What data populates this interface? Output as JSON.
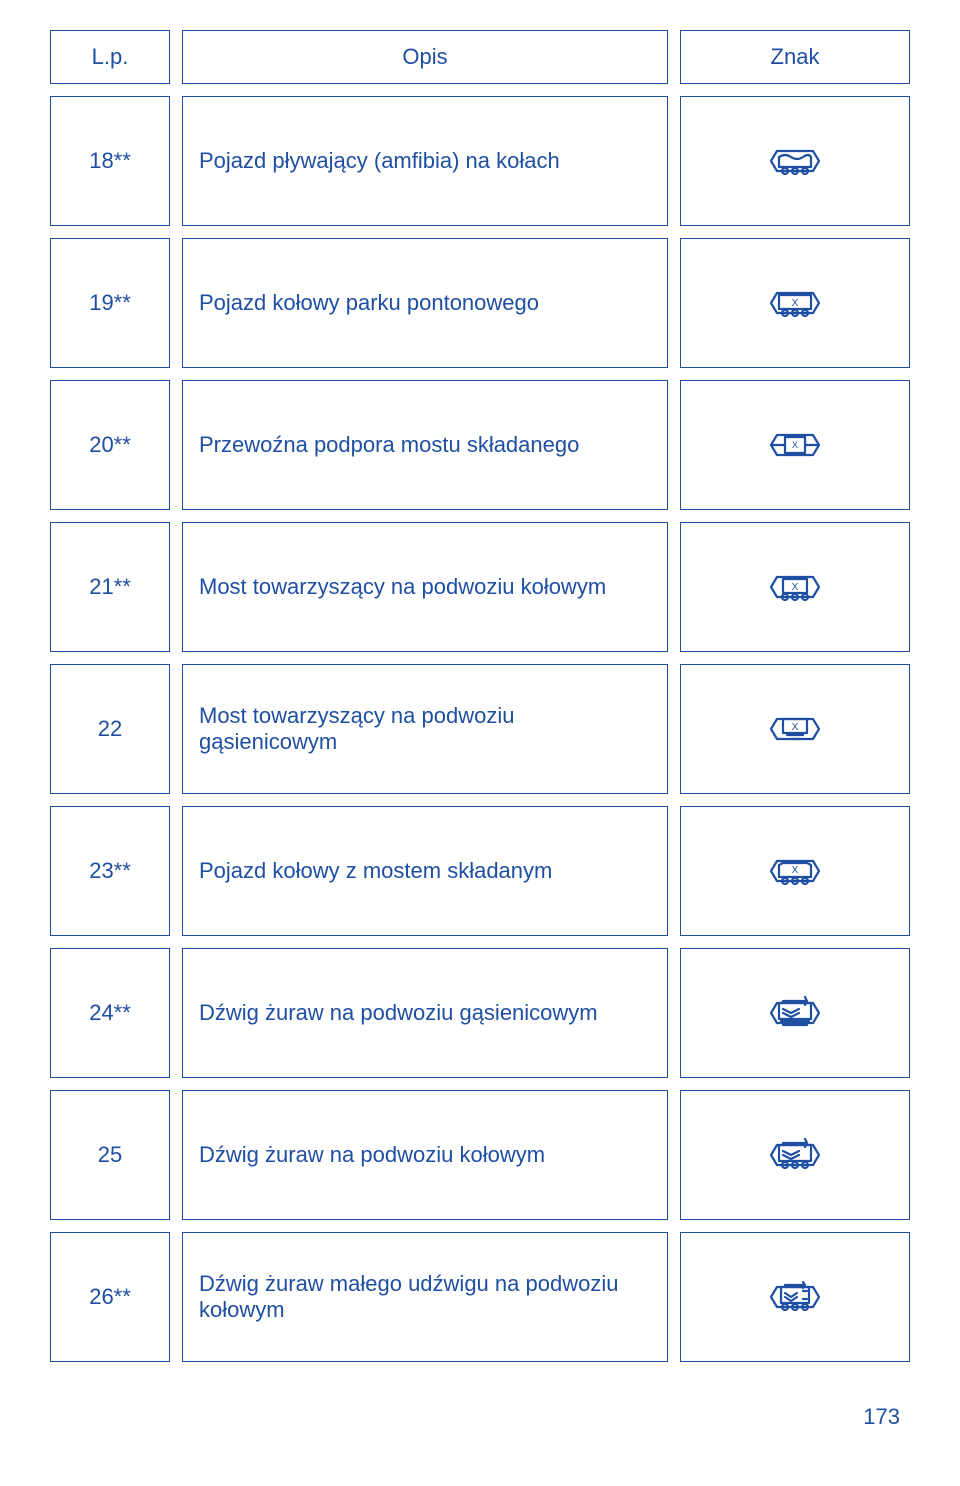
{
  "colors": {
    "border": "#1f4fa3",
    "text": "#1f4fa3",
    "stroke": "#1f4fa3",
    "background": "#ffffff"
  },
  "header": {
    "lp": "L.p.",
    "opis": "Opis",
    "znak": "Znak"
  },
  "rows": [
    {
      "lp": "18**",
      "opis": "Pojazd pływający (amfibia) na kołach",
      "icon": "amphibious"
    },
    {
      "lp": "19**",
      "opis": "Pojazd kołowy parku pontonowego",
      "icon": "pontoon-wheeled"
    },
    {
      "lp": "20**",
      "opis": "Przewoźna podpora mostu składanego",
      "icon": "bridge-support"
    },
    {
      "lp": "21**",
      "opis": "Most towarzyszący na podwoziu kołowym",
      "icon": "bridge-wheeled"
    },
    {
      "lp": "22",
      "opis": "Most towarzyszący na podwoziu gąsienicowym",
      "icon": "bridge-tracked"
    },
    {
      "lp": "23**",
      "opis": "Pojazd kołowy z mostem składanym",
      "icon": "folding-bridge-wheeled"
    },
    {
      "lp": "24**",
      "opis": "Dźwig żuraw na podwoziu gąsienicowym",
      "icon": "crane-tracked"
    },
    {
      "lp": "25",
      "opis": "Dźwig żuraw na podwoziu kołowym",
      "icon": "crane-wheeled"
    },
    {
      "lp": "26**",
      "opis": "Dźwig żuraw małego udźwigu na podwoziu kołowym",
      "icon": "crane-small-wheeled"
    }
  ],
  "page_number": "173",
  "svg": {
    "width": 72,
    "height": 60,
    "stroke_width": 2.2
  }
}
